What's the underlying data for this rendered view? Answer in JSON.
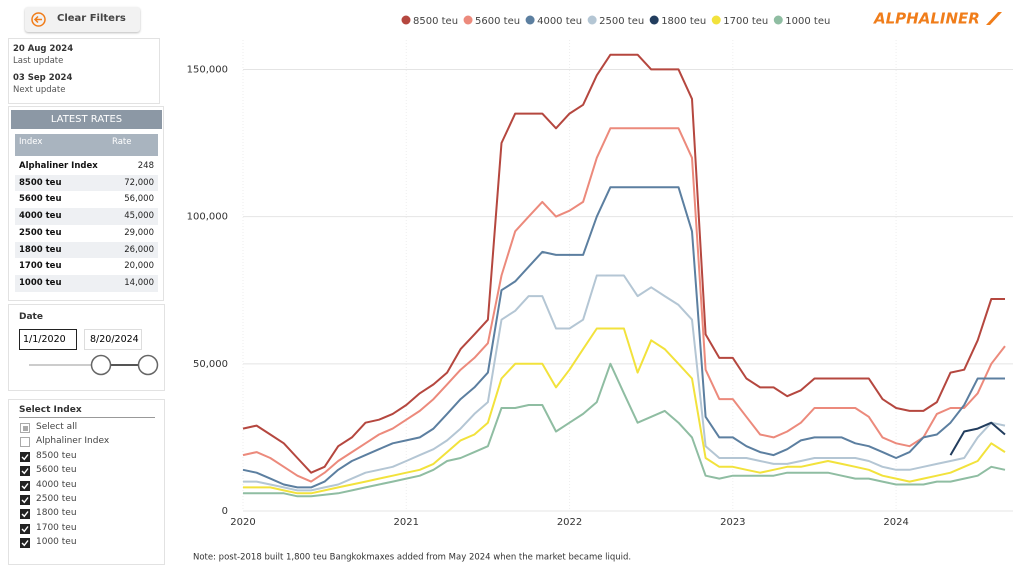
{
  "clear_filters": "Clear Filters",
  "updates": [
    {
      "date": "20 Aug 2024",
      "label": "Last update"
    },
    {
      "date": "03 Sep 2024",
      "label": "Next update"
    }
  ],
  "latest_rates": {
    "title": "LATEST RATES",
    "columns": [
      "Index",
      "Rate"
    ],
    "rows": [
      [
        "Alphaliner Index",
        "248"
      ],
      [
        "8500 teu",
        "72,000"
      ],
      [
        "5600 teu",
        "56,000"
      ],
      [
        "4000 teu",
        "45,000"
      ],
      [
        "2500 teu",
        "29,000"
      ],
      [
        "1800 teu",
        "26,000"
      ],
      [
        "1700 teu",
        "20,000"
      ],
      [
        "1000 teu",
        "14,000"
      ]
    ]
  },
  "date_filter": {
    "title": "Date",
    "start": "1/1/2020",
    "end": "8/20/2024"
  },
  "select_index": {
    "title": "Select Index",
    "items": [
      {
        "label": "Select all",
        "state": "partial"
      },
      {
        "label": "Alphaliner Index",
        "state": "unchecked"
      },
      {
        "label": "8500 teu",
        "state": "checked"
      },
      {
        "label": "5600 teu",
        "state": "checked"
      },
      {
        "label": "4000 teu",
        "state": "checked"
      },
      {
        "label": "2500 teu",
        "state": "checked"
      },
      {
        "label": "1800 teu",
        "state": "checked"
      },
      {
        "label": "1700 teu",
        "state": "checked"
      },
      {
        "label": "1000 teu",
        "state": "checked"
      }
    ]
  },
  "logo": "ALPHALINER",
  "chart_data": {
    "type": "line",
    "note": "Note: post-2018 built 1,800 teu Bangkokmaxes added from May 2024 when the market became liquid.",
    "x": [
      2020,
      2020.083,
      2020.167,
      2020.25,
      2020.333,
      2020.417,
      2020.5,
      2020.583,
      2020.667,
      2020.75,
      2020.833,
      2020.917,
      2021,
      2021.083,
      2021.167,
      2021.25,
      2021.333,
      2021.417,
      2021.5,
      2021.583,
      2021.667,
      2021.75,
      2021.833,
      2021.917,
      2022,
      2022.083,
      2022.167,
      2022.25,
      2022.333,
      2022.417,
      2022.5,
      2022.583,
      2022.667,
      2022.75,
      2022.833,
      2022.917,
      2023,
      2023.083,
      2023.167,
      2023.25,
      2023.333,
      2023.417,
      2023.5,
      2023.583,
      2023.667,
      2023.75,
      2023.833,
      2023.917,
      2024,
      2024.083,
      2024.167,
      2024.25,
      2024.333,
      2024.417,
      2024.5,
      2024.583,
      2024.667
    ],
    "series": [
      {
        "name": "8500 teu",
        "color": "#b5473f",
        "values": [
          28000,
          29000,
          26000,
          23000,
          18000,
          13000,
          15000,
          22000,
          25000,
          30000,
          31000,
          33000,
          36000,
          40000,
          43000,
          47000,
          55000,
          60000,
          65000,
          125000,
          135000,
          135000,
          135000,
          130000,
          135000,
          138000,
          148000,
          155000,
          155000,
          155000,
          150000,
          150000,
          150000,
          140000,
          60000,
          52000,
          52000,
          45000,
          42000,
          42000,
          39000,
          41000,
          45000,
          45000,
          45000,
          45000,
          45000,
          38000,
          35000,
          34000,
          34000,
          37000,
          47000,
          48000,
          58000,
          72000,
          72000
        ]
      },
      {
        "name": "5600 teu",
        "color": "#ec8a7c",
        "values": [
          19000,
          20000,
          18000,
          15000,
          12000,
          10000,
          13000,
          17000,
          20000,
          23000,
          26000,
          28000,
          31000,
          34000,
          38000,
          43000,
          48000,
          52000,
          57000,
          80000,
          95000,
          100000,
          105000,
          100000,
          102000,
          105000,
          120000,
          130000,
          130000,
          130000,
          130000,
          130000,
          130000,
          120000,
          48000,
          38000,
          38000,
          32000,
          26000,
          25000,
          27000,
          30000,
          35000,
          35000,
          35000,
          35000,
          32000,
          25000,
          23000,
          22000,
          25000,
          33000,
          35000,
          35000,
          40000,
          50000,
          56000
        ]
      },
      {
        "name": "4000 teu",
        "color": "#5c7fa0",
        "values": [
          14000,
          13000,
          11000,
          9000,
          8000,
          8000,
          10000,
          14000,
          17000,
          19000,
          21000,
          23000,
          24000,
          25000,
          28000,
          33000,
          38000,
          42000,
          47000,
          75000,
          78000,
          83000,
          88000,
          87000,
          87000,
          87000,
          100000,
          110000,
          110000,
          110000,
          110000,
          110000,
          110000,
          95000,
          32000,
          25000,
          25000,
          22000,
          20000,
          19000,
          21000,
          24000,
          25000,
          25000,
          25000,
          23000,
          22000,
          20000,
          18000,
          20000,
          25000,
          26000,
          30000,
          36000,
          45000,
          45000,
          45000
        ]
      },
      {
        "name": "2500 teu",
        "color": "#b4c6d4",
        "values": [
          10000,
          10000,
          9000,
          8000,
          7000,
          7000,
          8000,
          9000,
          11000,
          13000,
          14000,
          15000,
          17000,
          19000,
          21000,
          24000,
          28000,
          33000,
          37000,
          65000,
          68000,
          73000,
          73000,
          62000,
          62000,
          65000,
          80000,
          80000,
          80000,
          73000,
          76000,
          73000,
          70000,
          65000,
          22000,
          18000,
          18000,
          18000,
          17000,
          16000,
          16000,
          17000,
          18000,
          18000,
          18000,
          18000,
          17000,
          15000,
          14000,
          14000,
          15000,
          16000,
          17000,
          18000,
          25000,
          30000,
          29000
        ]
      },
      {
        "name": "1800 teu",
        "color": "#223d5e",
        "values": [
          null,
          null,
          null,
          null,
          null,
          null,
          null,
          null,
          null,
          null,
          null,
          null,
          null,
          null,
          null,
          null,
          null,
          null,
          null,
          null,
          null,
          null,
          null,
          null,
          null,
          null,
          null,
          null,
          null,
          null,
          null,
          null,
          null,
          null,
          null,
          null,
          null,
          null,
          null,
          null,
          null,
          null,
          null,
          null,
          null,
          null,
          null,
          null,
          null,
          null,
          null,
          null,
          19000,
          27000,
          28000,
          30000,
          26000
        ]
      },
      {
        "name": "1700 teu",
        "color": "#f2e23c",
        "values": [
          8000,
          8000,
          8000,
          7000,
          6000,
          6000,
          7000,
          8000,
          9000,
          10000,
          11000,
          12000,
          13000,
          14000,
          16000,
          20000,
          24000,
          26000,
          30000,
          45000,
          50000,
          50000,
          50000,
          42000,
          48000,
          55000,
          62000,
          62000,
          62000,
          47000,
          58000,
          55000,
          50000,
          45000,
          18000,
          15000,
          15000,
          14000,
          13000,
          14000,
          15000,
          15000,
          16000,
          17000,
          16000,
          15000,
          14000,
          12000,
          11000,
          10000,
          11000,
          12000,
          13000,
          15000,
          17000,
          23000,
          20000
        ]
      },
      {
        "name": "1000 teu",
        "color": "#8fbda2",
        "values": [
          6000,
          6000,
          6000,
          6000,
          5000,
          5000,
          5500,
          6000,
          7000,
          8000,
          9000,
          10000,
          11000,
          12000,
          14000,
          17000,
          18000,
          20000,
          22000,
          35000,
          35000,
          36000,
          36000,
          27000,
          30000,
          33000,
          37000,
          50000,
          40000,
          30000,
          32000,
          34000,
          30000,
          25000,
          12000,
          11000,
          12000,
          12000,
          12000,
          12000,
          13000,
          13000,
          13000,
          13000,
          12000,
          11000,
          11000,
          10000,
          9000,
          9000,
          9000,
          10000,
          10000,
          11000,
          12000,
          15000,
          14000
        ]
      }
    ],
    "xlim": [
      2020,
      2024.667
    ],
    "xticks": [
      2020,
      2021,
      2022,
      2023,
      2024
    ],
    "ylim": [
      0,
      160000
    ],
    "yticks": [
      0,
      {
        "value": 50000,
        "label": "50,000"
      },
      {
        "value": 100000,
        "label": "100,000"
      },
      {
        "value": 150000,
        "label": "150,000"
      }
    ],
    "grid": true,
    "legend": "top"
  }
}
